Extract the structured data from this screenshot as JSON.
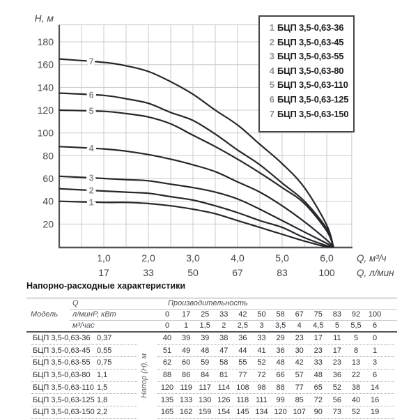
{
  "chart_data": {
    "type": "line",
    "title": "",
    "x_label_m3h": "Q, м³/ч",
    "x_label_lmin": "Q, л/мин",
    "y_label": "H, м",
    "x_m3h": [
      0,
      1,
      1.5,
      2,
      2.5,
      3,
      3.5,
      4,
      4.5,
      5,
      5.5,
      6
    ],
    "x_lmin": [
      0,
      17,
      25,
      33,
      42,
      50,
      58,
      67,
      75,
      83,
      92,
      100
    ],
    "series": [
      {
        "num": "1",
        "name": "БЦП 3,5-0,63-36",
        "power_kw": "0,37",
        "H_m": [
          40,
          39,
          39,
          38,
          36,
          33,
          29,
          23,
          17,
          11,
          5,
          0
        ]
      },
      {
        "num": "2",
        "name": "БЦП 3,5-0,63-45",
        "power_kw": "0,55",
        "H_m": [
          51,
          49,
          48,
          47,
          44,
          41,
          36,
          30,
          23,
          17,
          8,
          1
        ]
      },
      {
        "num": "3",
        "name": "БЦП 3,5-0,63-55",
        "power_kw": "0,75",
        "H_m": [
          62,
          60,
          59,
          58,
          55,
          52,
          48,
          42,
          33,
          23,
          13,
          3
        ]
      },
      {
        "num": "4",
        "name": "БЦП 3,5-0,63-80",
        "power_kw": "1,1",
        "H_m": [
          88,
          86,
          84,
          81,
          77,
          72,
          66,
          57,
          48,
          36,
          22,
          6
        ]
      },
      {
        "num": "5",
        "name": "БЦП 3,5-0,63-110",
        "power_kw": "1,5",
        "H_m": [
          120,
          119,
          117,
          114,
          108,
          98,
          88,
          77,
          65,
          52,
          38,
          14
        ]
      },
      {
        "num": "6",
        "name": "БЦП 3,5-0,63-125",
        "power_kw": "1,8",
        "H_m": [
          135,
          133,
          130,
          126,
          118,
          111,
          99,
          85,
          72,
          56,
          40,
          16
        ]
      },
      {
        "num": "7",
        "name": "БЦП 3,5-0,63-150",
        "power_kw": "2,2",
        "H_m": [
          165,
          162,
          159,
          154,
          145,
          134,
          120,
          107,
          90,
          73,
          52,
          19
        ]
      }
    ],
    "converge_point": {
      "q": 6.15,
      "h": 0
    },
    "axes": {
      "y_ticks": [
        20,
        40,
        60,
        80,
        100,
        120,
        140,
        160,
        180
      ],
      "y_max": 195,
      "x_max": 6.56,
      "x_ticks": [
        1,
        2,
        3,
        4,
        5,
        6
      ],
      "x_tick_labels_m3h": [
        "1,0",
        "2,0",
        "3,0",
        "4,0",
        "5,0",
        "6,0"
      ],
      "x_tick_labels_lmin": [
        "17",
        "33",
        "50",
        "67",
        "83",
        "100"
      ],
      "grid": true,
      "grid_step_x": 0.5,
      "grid_step_y": 20,
      "legend_position": "top-right"
    },
    "colors": {
      "curve": "#26262c",
      "grid": "#cbcbd0",
      "axis": "#53535b",
      "curve_label": "#8e8e96",
      "tick_label": "#45454d"
    }
  },
  "table": {
    "title": "Напорно-расходные характеристики",
    "headers": {
      "model": "Модель",
      "power": "P, кВт",
      "q": "Q",
      "perf": "Производительность",
      "lmin": "л/мин",
      "m3h": "м³/час",
      "head": "Напор (Н), м"
    },
    "lmin_row": [
      "0",
      "17",
      "25",
      "33",
      "42",
      "50",
      "58",
      "67",
      "75",
      "83",
      "92",
      "100"
    ],
    "m3h_row": [
      "0",
      "1",
      "1,5",
      "2",
      "2,5",
      "3",
      "3,5",
      "4",
      "4,5",
      "5",
      "5,5",
      "6"
    ],
    "rows": [
      {
        "model": "БЦП 3,5-0,63-36",
        "power": "0,37",
        "values": [
          "40",
          "39",
          "39",
          "38",
          "36",
          "33",
          "29",
          "23",
          "17",
          "11",
          "5",
          "0"
        ]
      },
      {
        "model": "БЦП 3,5-0,63-45",
        "power": "0,55",
        "values": [
          "51",
          "49",
          "48",
          "47",
          "44",
          "41",
          "36",
          "30",
          "23",
          "17",
          "8",
          "1"
        ]
      },
      {
        "model": "БЦП 3,5-0,63-55",
        "power": "0,75",
        "values": [
          "62",
          "60",
          "59",
          "58",
          "55",
          "52",
          "48",
          "42",
          "33",
          "23",
          "13",
          "3"
        ]
      },
      {
        "model": "БЦП 3,5-0,63-80",
        "power": "1,1",
        "values": [
          "88",
          "86",
          "84",
          "81",
          "77",
          "72",
          "66",
          "57",
          "48",
          "36",
          "22",
          "6"
        ]
      },
      {
        "model": "БЦП 3,5-0,63-110",
        "power": "1,5",
        "values": [
          "120",
          "119",
          "117",
          "114",
          "108",
          "98",
          "88",
          "77",
          "65",
          "52",
          "38",
          "14"
        ]
      },
      {
        "model": "БЦП 3,5-0,63-125",
        "power": "1,8",
        "values": [
          "135",
          "133",
          "130",
          "126",
          "118",
          "111",
          "99",
          "85",
          "72",
          "56",
          "40",
          "16"
        ]
      },
      {
        "model": "БЦП 3,5-0,63-150",
        "power": "2,2",
        "values": [
          "165",
          "162",
          "159",
          "154",
          "145",
          "134",
          "120",
          "107",
          "90",
          "73",
          "52",
          "19"
        ]
      }
    ]
  }
}
